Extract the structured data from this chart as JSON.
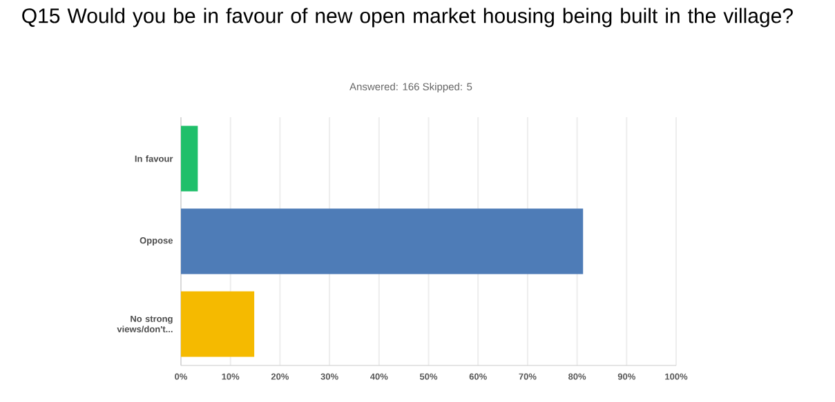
{
  "chart_data": {
    "type": "bar",
    "orientation": "horizontal",
    "title": "Q15 Would you be in favour of new open market housing being built in the village?",
    "subtitle": "Answered: 166    Skipped: 5",
    "categories": [
      "In favour",
      "Oppose",
      "No strong views/don't..."
    ],
    "values": [
      3.4,
      81.2,
      14.8
    ],
    "colors": [
      "#1fbf6a",
      "#4e7cb7",
      "#f5ba00"
    ],
    "xlim": [
      0,
      100
    ],
    "xticks": [
      {
        "value": 0,
        "label": "0%"
      },
      {
        "value": 10,
        "label": "10%"
      },
      {
        "value": 20,
        "label": "20%"
      },
      {
        "value": 30,
        "label": "30%"
      },
      {
        "value": 40,
        "label": "40%"
      },
      {
        "value": 50,
        "label": "50%"
      },
      {
        "value": 60,
        "label": "60%"
      },
      {
        "value": 70,
        "label": "70%"
      },
      {
        "value": 80,
        "label": "80%"
      },
      {
        "value": 90,
        "label": "90%"
      },
      {
        "value": 100,
        "label": "100%"
      }
    ],
    "grid": "x"
  }
}
